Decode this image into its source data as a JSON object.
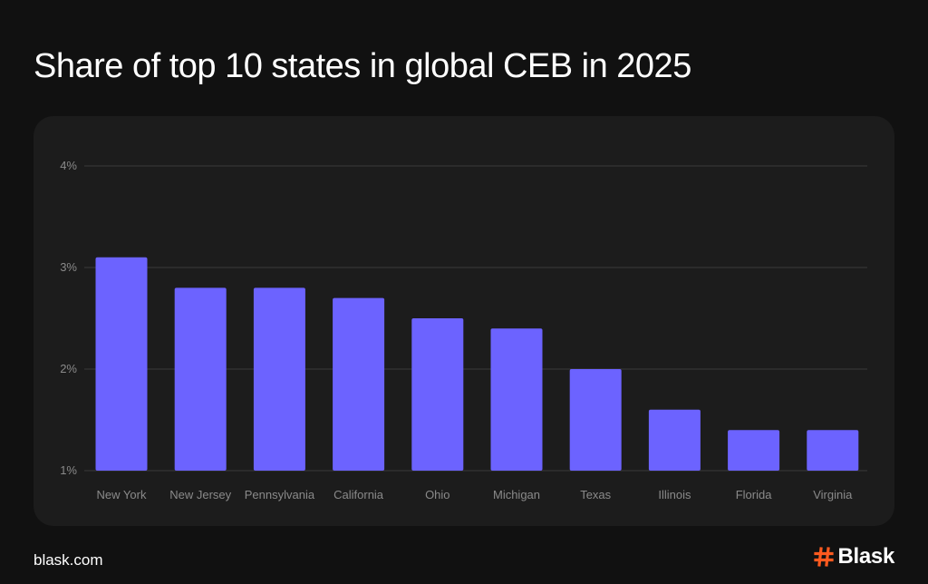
{
  "header": {
    "title": "Share of top 10 states in global CEB in 2025"
  },
  "footer": {
    "url": "blask.com",
    "brand": "Blask"
  },
  "colors": {
    "bar": "#6c63ff",
    "background": "#111111",
    "card": "#1c1c1c",
    "grid": "#3a3a3a",
    "tick_text": "#8a8a8a",
    "brand_accent": "#ff5a1f"
  },
  "chart_data": {
    "type": "bar",
    "title": "Share of top 10 states in global CEB in 2025",
    "xlabel": "",
    "ylabel": "",
    "categories": [
      "New York",
      "New Jersey",
      "Pennsylvania",
      "California",
      "Ohio",
      "Michigan",
      "Texas",
      "Illinois",
      "Florida",
      "Virginia"
    ],
    "values": [
      3.1,
      2.8,
      2.8,
      2.7,
      2.5,
      2.4,
      2.0,
      1.6,
      1.4,
      1.4
    ],
    "ylim": [
      1,
      4
    ],
    "yticks": [
      1,
      2,
      3,
      4
    ],
    "ytick_labels": [
      "1%",
      "2%",
      "3%",
      "4%"
    ],
    "unit": "%",
    "grid": true,
    "legend": "none"
  }
}
